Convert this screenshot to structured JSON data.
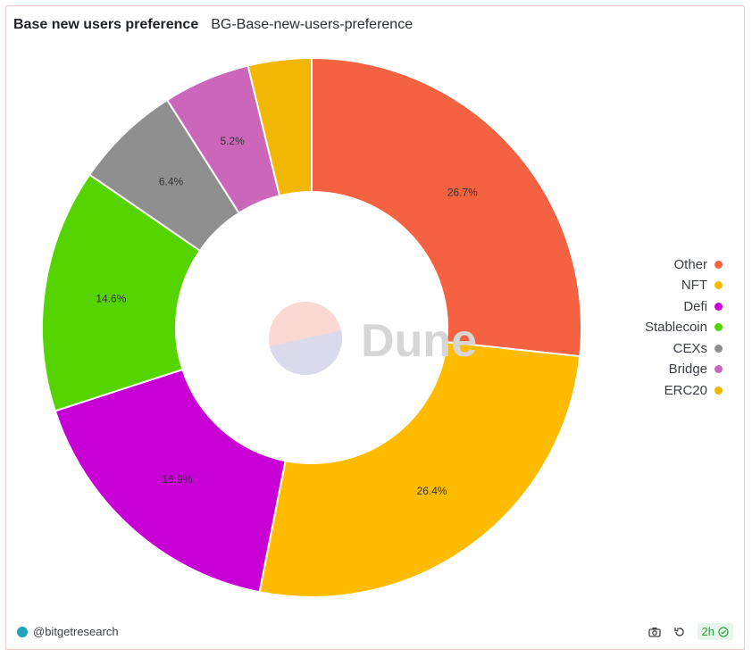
{
  "header": {
    "title": "Base new users preference",
    "subtitle": "BG-Base-new-users-preference"
  },
  "watermark": {
    "text": "Dune"
  },
  "footer": {
    "author": "@bitgetresearch",
    "refresh_age": "2h"
  },
  "icons": [
    "camera-icon",
    "refresh-icon",
    "check-circle-icon"
  ],
  "chart_data": {
    "type": "pie",
    "donut": true,
    "categories": [
      "Other",
      "NFT",
      "Defi",
      "Stablecoin",
      "CEXs",
      "Bridge",
      "ERC20"
    ],
    "values": [
      26.7,
      26.4,
      16.9,
      14.6,
      6.4,
      5.2,
      3.8
    ],
    "value_labels": [
      "26.7%",
      "26.4%",
      "16.9%",
      "14.6%",
      "6.4%",
      "5.2%",
      ""
    ],
    "colors": [
      "#f46241",
      "#ffbb00",
      "#c800d6",
      "#55d400",
      "#8f8f8f",
      "#cc66bb",
      "#f2b705"
    ],
    "unit": "%",
    "legend_position": "right"
  }
}
